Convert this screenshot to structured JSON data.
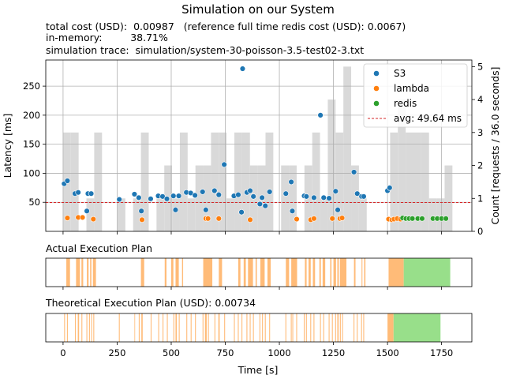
{
  "title": "Simulation on our System",
  "info_lines": [
    "total cost (USD):  0.00987   (reference full time redis cost (USD): 0.0067)",
    "in-memory:         38.71%",
    "simulation trace:  simulation/system-30-poisson-3.5-test02-3.txt"
  ],
  "colors": {
    "s3": "#1f77b4",
    "lambda": "#ff7f0e",
    "redis": "#2ca02c",
    "hist": "#d9d9d9",
    "avg_line": "#d62728",
    "plan_lambda": "#ffbb78",
    "plan_redis": "#98df8a"
  },
  "chart_data": [
    {
      "type": "scatter",
      "title": "",
      "xlabel": "Time [s]",
      "ylabel": "Latency [ms]",
      "y2label": "Count [requests / 36.0 seconds]",
      "xlim": [
        -80,
        1890
      ],
      "ylim": [
        0,
        295
      ],
      "y2lim": [
        0,
        5.2
      ],
      "xticks": [
        0,
        250,
        500,
        750,
        1000,
        1250,
        1500,
        1750
      ],
      "yticks": [
        50,
        100,
        150,
        200,
        250
      ],
      "y2ticks": [
        0,
        1,
        2,
        3,
        4,
        5
      ],
      "grid": true,
      "legend_position": "top-right",
      "legend": [
        {
          "label": "S3",
          "kind": "dot",
          "color": "#1f77b4"
        },
        {
          "label": "lambda",
          "kind": "dot",
          "color": "#ff7f0e"
        },
        {
          "label": "redis",
          "kind": "dot",
          "color": "#2ca02c"
        },
        {
          "label": "avg: 49.64 ms",
          "kind": "dash",
          "color": "#d62728"
        }
      ],
      "avg_latency": 49.64,
      "histogram": {
        "bin_width": 36,
        "bins": [
          {
            "x": 0,
            "count": 3
          },
          {
            "x": 36,
            "count": 3
          },
          {
            "x": 108,
            "count": 1
          },
          {
            "x": 144,
            "count": 3
          },
          {
            "x": 252,
            "count": 1
          },
          {
            "x": 324,
            "count": 1
          },
          {
            "x": 360,
            "count": 3
          },
          {
            "x": 432,
            "count": 1
          },
          {
            "x": 468,
            "count": 2
          },
          {
            "x": 504,
            "count": 1
          },
          {
            "x": 540,
            "count": 3
          },
          {
            "x": 576,
            "count": 1
          },
          {
            "x": 612,
            "count": 2
          },
          {
            "x": 648,
            "count": 2
          },
          {
            "x": 684,
            "count": 3
          },
          {
            "x": 720,
            "count": 3
          },
          {
            "x": 756,
            "count": 1
          },
          {
            "x": 792,
            "count": 3
          },
          {
            "x": 828,
            "count": 3
          },
          {
            "x": 864,
            "count": 2
          },
          {
            "x": 900,
            "count": 2
          },
          {
            "x": 936,
            "count": 3
          },
          {
            "x": 1008,
            "count": 2
          },
          {
            "x": 1044,
            "count": 2
          },
          {
            "x": 1116,
            "count": 2
          },
          {
            "x": 1152,
            "count": 3
          },
          {
            "x": 1188,
            "count": 1
          },
          {
            "x": 1224,
            "count": 4
          },
          {
            "x": 1260,
            "count": 3
          },
          {
            "x": 1296,
            "count": 5
          },
          {
            "x": 1332,
            "count": 2
          },
          {
            "x": 1368,
            "count": 1
          },
          {
            "x": 1512,
            "count": 3
          },
          {
            "x": 1548,
            "count": 4
          },
          {
            "x": 1584,
            "count": 3
          },
          {
            "x": 1620,
            "count": 3
          },
          {
            "x": 1656,
            "count": 3
          },
          {
            "x": 1692,
            "count": 1
          },
          {
            "x": 1728,
            "count": 1
          },
          {
            "x": 1764,
            "count": 2
          }
        ]
      },
      "series": [
        {
          "name": "S3",
          "points": [
            [
              5,
              82
            ],
            [
              20,
              87
            ],
            [
              55,
              65
            ],
            [
              70,
              67
            ],
            [
              110,
              35
            ],
            [
              115,
              65
            ],
            [
              130,
              65
            ],
            [
              260,
              55
            ],
            [
              330,
              64
            ],
            [
              350,
              58
            ],
            [
              362,
              35
            ],
            [
              405,
              56
            ],
            [
              440,
              61
            ],
            [
              460,
              60
            ],
            [
              480,
              56
            ],
            [
              510,
              61
            ],
            [
              520,
              37
            ],
            [
              535,
              61
            ],
            [
              570,
              67
            ],
            [
              590,
              66
            ],
            [
              610,
              62
            ],
            [
              645,
              68
            ],
            [
              660,
              37
            ],
            [
              700,
              70
            ],
            [
              720,
              63
            ],
            [
              745,
              115
            ],
            [
              790,
              61
            ],
            [
              810,
              63
            ],
            [
              825,
              33
            ],
            [
              830,
              280
            ],
            [
              850,
              67
            ],
            [
              865,
              70
            ],
            [
              880,
              60
            ],
            [
              910,
              47
            ],
            [
              920,
              58
            ],
            [
              935,
              44
            ],
            [
              955,
              68
            ],
            [
              1030,
              65
            ],
            [
              1055,
              85
            ],
            [
              1060,
              35
            ],
            [
              1115,
              61
            ],
            [
              1125,
              60
            ],
            [
              1160,
              58
            ],
            [
              1190,
              200
            ],
            [
              1205,
              58
            ],
            [
              1230,
              57
            ],
            [
              1260,
              69
            ],
            [
              1270,
              37
            ],
            [
              1345,
              102
            ],
            [
              1360,
              65
            ],
            [
              1380,
              60
            ],
            [
              1390,
              60
            ],
            [
              1500,
              70
            ],
            [
              1510,
              75
            ]
          ]
        },
        {
          "name": "lambda",
          "points": [
            [
              20,
              23
            ],
            [
              70,
              24
            ],
            [
              90,
              24
            ],
            [
              140,
              21
            ],
            [
              365,
              20
            ],
            [
              660,
              22
            ],
            [
              670,
              22
            ],
            [
              720,
              22
            ],
            [
              865,
              20
            ],
            [
              1080,
              21
            ],
            [
              1145,
              20
            ],
            [
              1160,
              22
            ],
            [
              1245,
              22
            ],
            [
              1280,
              22
            ],
            [
              1290,
              23
            ],
            [
              1505,
              21
            ],
            [
              1520,
              20
            ],
            [
              1530,
              21
            ],
            [
              1545,
              22
            ],
            [
              1560,
              21
            ]
          ]
        },
        {
          "name": "redis",
          "points": [
            [
              1570,
              23
            ],
            [
              1585,
              22
            ],
            [
              1600,
              22
            ],
            [
              1615,
              22
            ],
            [
              1640,
              22
            ],
            [
              1660,
              22
            ],
            [
              1710,
              22
            ],
            [
              1730,
              22
            ],
            [
              1750,
              22
            ],
            [
              1770,
              22
            ]
          ]
        }
      ]
    },
    {
      "type": "timeline",
      "title": "Actual Execution Plan",
      "xlim": [
        -80,
        1890
      ],
      "segments": [
        {
          "kind": "lambda",
          "start": 15,
          "end": 32
        },
        {
          "kind": "lambda",
          "start": 60,
          "end": 78
        },
        {
          "kind": "lambda",
          "start": 85,
          "end": 93
        },
        {
          "kind": "lambda",
          "start": 110,
          "end": 118
        },
        {
          "kind": "lambda",
          "start": 125,
          "end": 131
        },
        {
          "kind": "lambda",
          "start": 138,
          "end": 152
        },
        {
          "kind": "lambda",
          "start": 360,
          "end": 375
        },
        {
          "kind": "lambda",
          "start": 470,
          "end": 478
        },
        {
          "kind": "lambda",
          "start": 500,
          "end": 510
        },
        {
          "kind": "lambda",
          "start": 520,
          "end": 535
        },
        {
          "kind": "lambda",
          "start": 550,
          "end": 555
        },
        {
          "kind": "lambda",
          "start": 648,
          "end": 690
        },
        {
          "kind": "lambda",
          "start": 720,
          "end": 735
        },
        {
          "kind": "lambda",
          "start": 810,
          "end": 820
        },
        {
          "kind": "lambda",
          "start": 835,
          "end": 845
        },
        {
          "kind": "lambda",
          "start": 855,
          "end": 878
        },
        {
          "kind": "lambda",
          "start": 890,
          "end": 896
        },
        {
          "kind": "lambda",
          "start": 912,
          "end": 932
        },
        {
          "kind": "lambda",
          "start": 945,
          "end": 960
        },
        {
          "kind": "lambda",
          "start": 1030,
          "end": 1045
        },
        {
          "kind": "lambda",
          "start": 1055,
          "end": 1082
        },
        {
          "kind": "lambda",
          "start": 1118,
          "end": 1126
        },
        {
          "kind": "lambda",
          "start": 1135,
          "end": 1145
        },
        {
          "kind": "lambda",
          "start": 1155,
          "end": 1165
        },
        {
          "kind": "lambda",
          "start": 1185,
          "end": 1192
        },
        {
          "kind": "lambda",
          "start": 1200,
          "end": 1212
        },
        {
          "kind": "lambda",
          "start": 1235,
          "end": 1241
        },
        {
          "kind": "lambda",
          "start": 1250,
          "end": 1262
        },
        {
          "kind": "lambda",
          "start": 1268,
          "end": 1275
        },
        {
          "kind": "lambda",
          "start": 1280,
          "end": 1310
        },
        {
          "kind": "lambda",
          "start": 1345,
          "end": 1352
        },
        {
          "kind": "lambda",
          "start": 1380,
          "end": 1384
        },
        {
          "kind": "lambda",
          "start": 1392,
          "end": 1398
        },
        {
          "kind": "lambda",
          "start": 1505,
          "end": 1575
        },
        {
          "kind": "redis",
          "start": 1575,
          "end": 1790
        }
      ]
    },
    {
      "type": "timeline",
      "title": "Theoretical Execution Plan (USD): 0.00734",
      "xlim": [
        -80,
        1890
      ],
      "segments": [
        {
          "kind": "lambda",
          "start": 5,
          "end": 9
        },
        {
          "kind": "lambda",
          "start": 18,
          "end": 22
        },
        {
          "kind": "lambda",
          "start": 55,
          "end": 59
        },
        {
          "kind": "lambda",
          "start": 68,
          "end": 74
        },
        {
          "kind": "lambda",
          "start": 85,
          "end": 89
        },
        {
          "kind": "lambda",
          "start": 108,
          "end": 112
        },
        {
          "kind": "lambda",
          "start": 120,
          "end": 124
        },
        {
          "kind": "lambda",
          "start": 130,
          "end": 134
        },
        {
          "kind": "lambda",
          "start": 140,
          "end": 144
        },
        {
          "kind": "lambda",
          "start": 258,
          "end": 262
        },
        {
          "kind": "lambda",
          "start": 330,
          "end": 333
        },
        {
          "kind": "lambda",
          "start": 350,
          "end": 354
        },
        {
          "kind": "lambda",
          "start": 362,
          "end": 368
        },
        {
          "kind": "lambda",
          "start": 405,
          "end": 409
        },
        {
          "kind": "lambda",
          "start": 440,
          "end": 444
        },
        {
          "kind": "lambda",
          "start": 460,
          "end": 464
        },
        {
          "kind": "lambda",
          "start": 480,
          "end": 484
        },
        {
          "kind": "lambda",
          "start": 510,
          "end": 514
        },
        {
          "kind": "lambda",
          "start": 520,
          "end": 526
        },
        {
          "kind": "lambda",
          "start": 535,
          "end": 539
        },
        {
          "kind": "lambda",
          "start": 570,
          "end": 574
        },
        {
          "kind": "lambda",
          "start": 590,
          "end": 594
        },
        {
          "kind": "lambda",
          "start": 610,
          "end": 614
        },
        {
          "kind": "lambda",
          "start": 645,
          "end": 649
        },
        {
          "kind": "lambda",
          "start": 656,
          "end": 664
        },
        {
          "kind": "lambda",
          "start": 670,
          "end": 674
        },
        {
          "kind": "lambda",
          "start": 700,
          "end": 704
        },
        {
          "kind": "lambda",
          "start": 718,
          "end": 724
        },
        {
          "kind": "lambda",
          "start": 745,
          "end": 749
        },
        {
          "kind": "lambda",
          "start": 790,
          "end": 794
        },
        {
          "kind": "lambda",
          "start": 808,
          "end": 812
        },
        {
          "kind": "lambda",
          "start": 825,
          "end": 829
        },
        {
          "kind": "lambda",
          "start": 848,
          "end": 852
        },
        {
          "kind": "lambda",
          "start": 863,
          "end": 867
        },
        {
          "kind": "lambda",
          "start": 878,
          "end": 882
        },
        {
          "kind": "lambda",
          "start": 908,
          "end": 912
        },
        {
          "kind": "lambda",
          "start": 920,
          "end": 924
        },
        {
          "kind": "lambda",
          "start": 933,
          "end": 937
        },
        {
          "kind": "lambda",
          "start": 953,
          "end": 957
        },
        {
          "kind": "lambda",
          "start": 1028,
          "end": 1032
        },
        {
          "kind": "lambda",
          "start": 1053,
          "end": 1057
        },
        {
          "kind": "lambda",
          "start": 1060,
          "end": 1064
        },
        {
          "kind": "lambda",
          "start": 1078,
          "end": 1082
        },
        {
          "kind": "lambda",
          "start": 1113,
          "end": 1117
        },
        {
          "kind": "lambda",
          "start": 1123,
          "end": 1127
        },
        {
          "kind": "lambda",
          "start": 1143,
          "end": 1147
        },
        {
          "kind": "lambda",
          "start": 1158,
          "end": 1162
        },
        {
          "kind": "lambda",
          "start": 1188,
          "end": 1192
        },
        {
          "kind": "lambda",
          "start": 1203,
          "end": 1207
        },
        {
          "kind": "lambda",
          "start": 1228,
          "end": 1232
        },
        {
          "kind": "lambda",
          "start": 1243,
          "end": 1247
        },
        {
          "kind": "lambda",
          "start": 1258,
          "end": 1262
        },
        {
          "kind": "lambda",
          "start": 1268,
          "end": 1274
        },
        {
          "kind": "lambda",
          "start": 1280,
          "end": 1284
        },
        {
          "kind": "lambda",
          "start": 1290,
          "end": 1294
        },
        {
          "kind": "lambda",
          "start": 1343,
          "end": 1347
        },
        {
          "kind": "lambda",
          "start": 1358,
          "end": 1362
        },
        {
          "kind": "lambda",
          "start": 1378,
          "end": 1382
        },
        {
          "kind": "lambda",
          "start": 1388,
          "end": 1392
        },
        {
          "kind": "lambda",
          "start": 1500,
          "end": 1528
        },
        {
          "kind": "redis",
          "start": 1528,
          "end": 1745
        }
      ]
    }
  ]
}
